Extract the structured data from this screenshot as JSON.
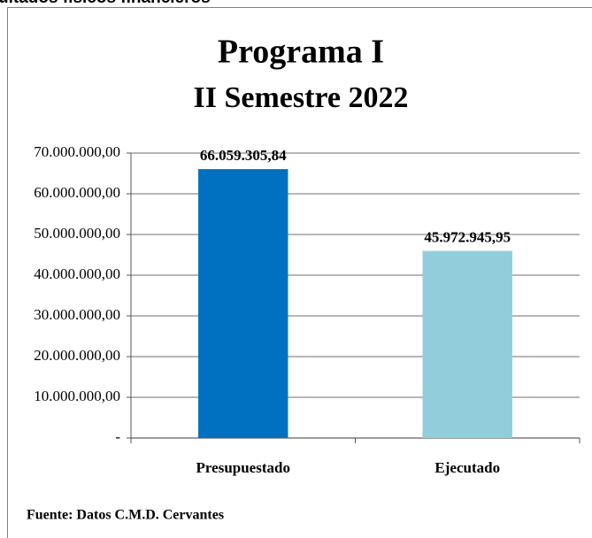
{
  "header": {
    "title": "ultados físicos financieros"
  },
  "chart_data": {
    "type": "bar",
    "title": "Programa I",
    "subtitle": "II Semestre 2022",
    "categories": [
      "Presupuestado",
      "Ejecutado"
    ],
    "values": [
      66059305.84,
      45972945.95
    ],
    "value_labels": [
      "66.059.305,84",
      "45.972.945,95"
    ],
    "colors": [
      "#0070c0",
      "#92cddc"
    ],
    "ylim": [
      0,
      70000000
    ],
    "yticks": [
      {
        "value": 0,
        "label": "-"
      },
      {
        "value": 10000000,
        "label": "10.000.000,00"
      },
      {
        "value": 20000000,
        "label": "20.000.000,00"
      },
      {
        "value": 30000000,
        "label": "30.000.000,00"
      },
      {
        "value": 40000000,
        "label": "40.000.000,00"
      },
      {
        "value": 50000000,
        "label": "50.000.000,00"
      },
      {
        "value": 60000000,
        "label": "60.000.000,00"
      },
      {
        "value": 70000000,
        "label": "70.000.000,00"
      }
    ],
    "grid": true,
    "source": "Fuente: Datos C.M.D. Cervantes"
  }
}
